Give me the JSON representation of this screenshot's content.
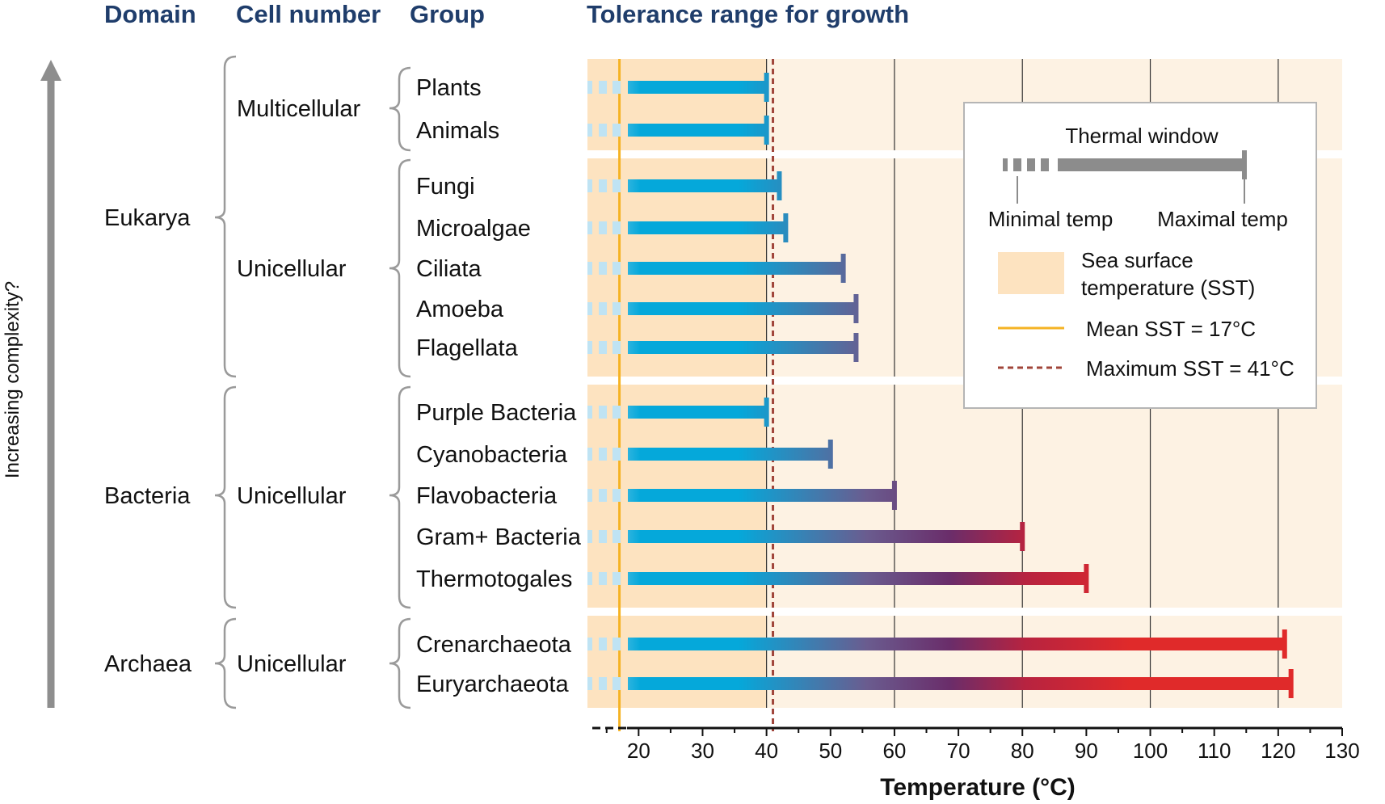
{
  "headers": {
    "domain": "Domain",
    "cell_number": "Cell number",
    "group": "Group",
    "tolerance": "Tolerance range for growth"
  },
  "side_label": "Increasing complexity?",
  "legend": {
    "thermal_window": "Thermal window",
    "minimal_temp": "Minimal temp",
    "maximal_temp": "Maximal temp",
    "sst_line1": "Sea surface",
    "sst_line2": "temperature (SST)",
    "mean_sst": "Mean SST = 17°C",
    "max_sst": "Maximum SST = 41°C"
  },
  "domains": [
    {
      "name": "Eukarya",
      "cells": [
        {
          "name": "Multicellular",
          "groups": [
            "Plants",
            "Animals"
          ]
        },
        {
          "name": "Unicellular",
          "groups": [
            "Fungi",
            "Microalgae",
            "Ciliata",
            "Amoeba",
            "Flagellata"
          ]
        }
      ]
    },
    {
      "name": "Bacteria",
      "cells": [
        {
          "name": "Unicellular",
          "groups": [
            "Purple Bacteria",
            "Cyanobacteria",
            "Flavobacteria",
            "Gram+ Bacteria",
            "Thermotogales"
          ]
        }
      ]
    },
    {
      "name": "Archaea",
      "cells": [
        {
          "name": "Unicellular",
          "groups": [
            "Crenarchaeota",
            "Euryarchaeota"
          ]
        }
      ]
    }
  ],
  "colors": {
    "header": "#1f3d6b",
    "sst_band": "#fde3c0",
    "panel": "#fdf2e3",
    "mean_line": "#f5b324",
    "max_line": "#a0453a",
    "bar_cold": "#05a8da",
    "bar_mid": "#6a2d6a",
    "bar_hot": "#e02a2a",
    "legend_bar": "#8c8c8c"
  },
  "chart_data": {
    "type": "bar",
    "orientation": "horizontal",
    "xlabel": "Temperature (°C)",
    "xlim": [
      12,
      130
    ],
    "xticks": [
      20,
      30,
      40,
      50,
      60,
      70,
      80,
      90,
      100,
      110,
      120,
      130
    ],
    "categories": [
      "Plants",
      "Animals",
      "Fungi",
      "Microalgae",
      "Ciliata",
      "Amoeba",
      "Flagellata",
      "Purple Bacteria",
      "Cyanobacteria",
      "Flavobacteria",
      "Gram+ Bacteria",
      "Thermotogales",
      "Crenarchaeota",
      "Euryarchaeota"
    ],
    "max_temp": [
      40,
      40,
      42,
      43,
      52,
      54,
      54,
      40,
      50,
      60,
      80,
      90,
      121,
      122
    ],
    "mean_sst": 17,
    "max_sst": 41,
    "sst_range": [
      12,
      40
    ]
  }
}
